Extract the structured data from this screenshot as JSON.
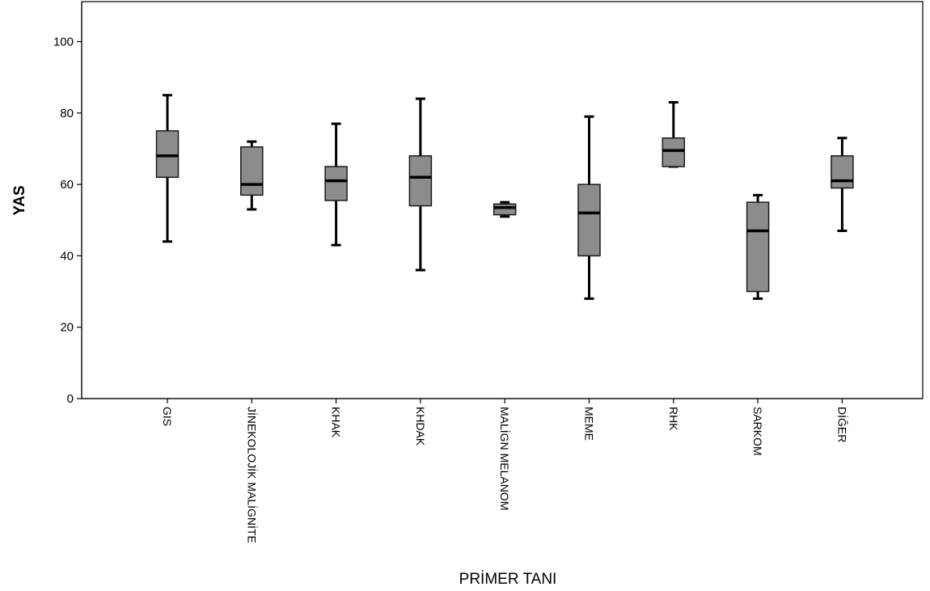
{
  "chart_data": {
    "type": "boxplot",
    "title": "",
    "xlabel": "PRİMER TANI",
    "ylabel": "YAS",
    "ylim": [
      0,
      110
    ],
    "yticks": [
      0,
      20,
      40,
      60,
      80,
      100
    ],
    "grid": false,
    "legend": "none",
    "box_color": "#8c8c8c",
    "categories": [
      "GIS",
      "JİNEKOLOJİK MALİGNİTE",
      "KHAK",
      "KHDAK",
      "MALİGN MELANOM",
      "MEME",
      "RHK",
      "SARKOM",
      "DİĞER"
    ],
    "series": [
      {
        "boxes": [
          {
            "min": 44,
            "q1": 62,
            "median": 68,
            "q3": 75,
            "max": 85
          },
          {
            "min": 53,
            "q1": 57,
            "median": 60,
            "q3": 70.5,
            "max": 72
          },
          {
            "min": 43,
            "q1": 55.5,
            "median": 61,
            "q3": 65,
            "max": 77
          },
          {
            "min": 36,
            "q1": 54,
            "median": 62,
            "q3": 68,
            "max": 84
          },
          {
            "min": 51,
            "q1": 51.5,
            "median": 53.5,
            "q3": 54.5,
            "max": 55
          },
          {
            "min": 28,
            "q1": 40,
            "median": 52,
            "q3": 60,
            "max": 79
          },
          {
            "min": 65,
            "q1": 65,
            "median": 69.5,
            "q3": 73,
            "max": 83
          },
          {
            "min": 28,
            "q1": 30,
            "median": 47,
            "q3": 55,
            "max": 57
          },
          {
            "min": 47,
            "q1": 59,
            "median": 61,
            "q3": 68,
            "max": 73
          }
        ]
      }
    ]
  }
}
